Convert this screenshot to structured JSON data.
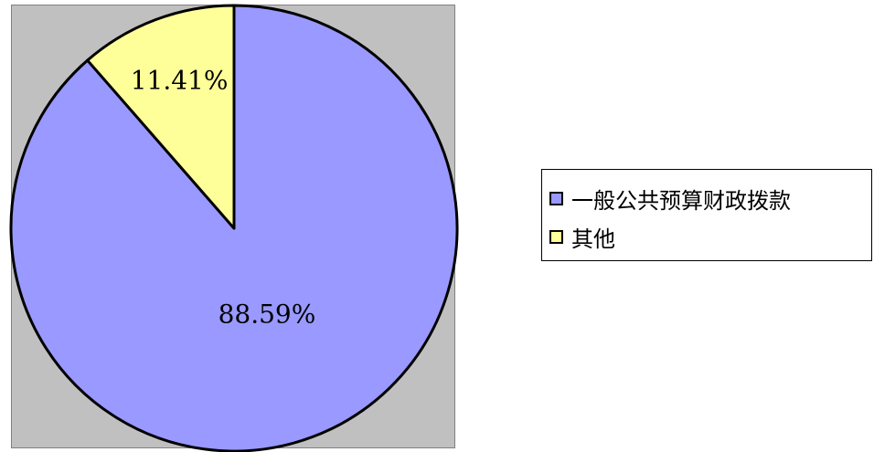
{
  "chart_data": {
    "type": "pie",
    "title": "",
    "slices": [
      {
        "label": "一般公共预算财政拨款",
        "value": 88.59,
        "value_label": "88.59%",
        "color": "#9999ff"
      },
      {
        "label": "其他",
        "value": 11.41,
        "value_label": "11.41%",
        "color": "#ffff99"
      }
    ],
    "legend_position": "right",
    "start_angle": "top",
    "direction": "clockwise",
    "plot_background": "#c0c0c0",
    "border_color": "#000000"
  },
  "legend": {
    "items": [
      {
        "label": "一般公共预算财政拨款",
        "color": "#9999ff"
      },
      {
        "label": "其他",
        "color": "#ffff99"
      }
    ]
  }
}
